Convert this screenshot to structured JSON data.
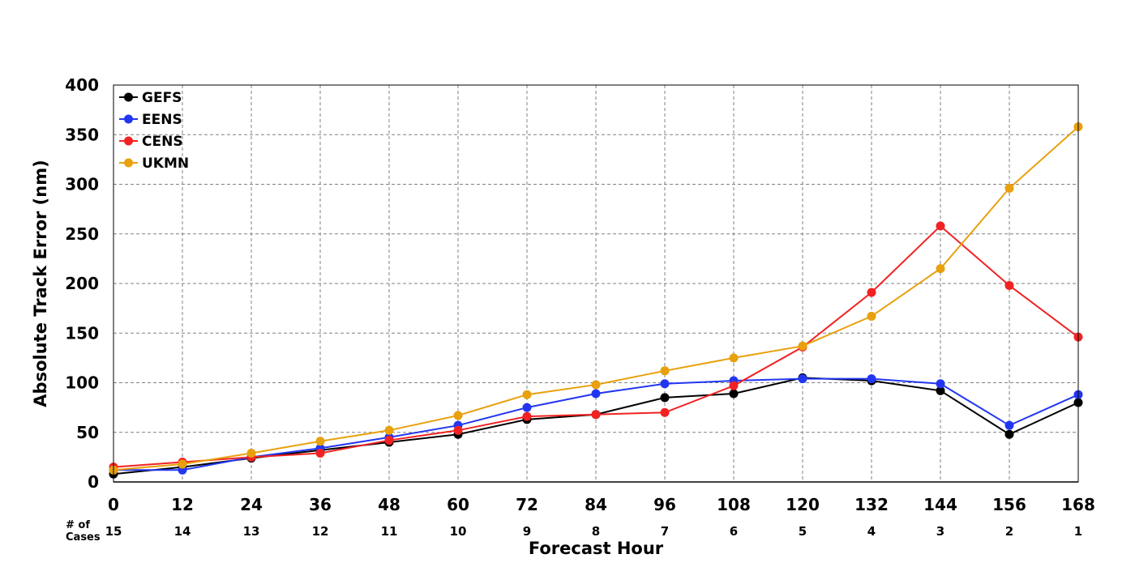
{
  "chart_data": {
    "type": "line",
    "xlabel": "Forecast Hour",
    "ylabel": "Absolute Track Error (nm)",
    "x": [
      0,
      12,
      24,
      36,
      48,
      60,
      72,
      84,
      96,
      108,
      120,
      132,
      144,
      156,
      168
    ],
    "xlim": [
      0,
      168
    ],
    "ylim": [
      0,
      400
    ],
    "yticks": [
      0,
      50,
      100,
      150,
      200,
      250,
      300,
      350,
      400
    ],
    "grid": true,
    "legend_position": "top-left",
    "cases_title": [
      "# of",
      "Cases"
    ],
    "cases": [
      15,
      14,
      13,
      12,
      11,
      10,
      9,
      8,
      7,
      6,
      5,
      4,
      3,
      2,
      1
    ],
    "series": [
      {
        "name": "GEFS",
        "color": "#000000",
        "values": [
          8,
          15,
          24,
          32,
          40,
          48,
          63,
          68,
          85,
          89,
          105,
          102,
          92,
          48,
          80
        ]
      },
      {
        "name": "EENS",
        "color": "#2236f2",
        "values": [
          12,
          12,
          25,
          34,
          45,
          57,
          75,
          89,
          99,
          102,
          104,
          104,
          99,
          57,
          88
        ]
      },
      {
        "name": "CENS",
        "color": "#f22222",
        "values": [
          15,
          20,
          25,
          29,
          42,
          52,
          66,
          68,
          70,
          97,
          136,
          191,
          258,
          198,
          146
        ]
      },
      {
        "name": "UKMN",
        "color": "#e8a00c",
        "values": [
          12,
          18,
          29,
          41,
          52,
          67,
          88,
          98,
          112,
          125,
          137,
          167,
          215,
          296,
          358
        ]
      }
    ]
  }
}
